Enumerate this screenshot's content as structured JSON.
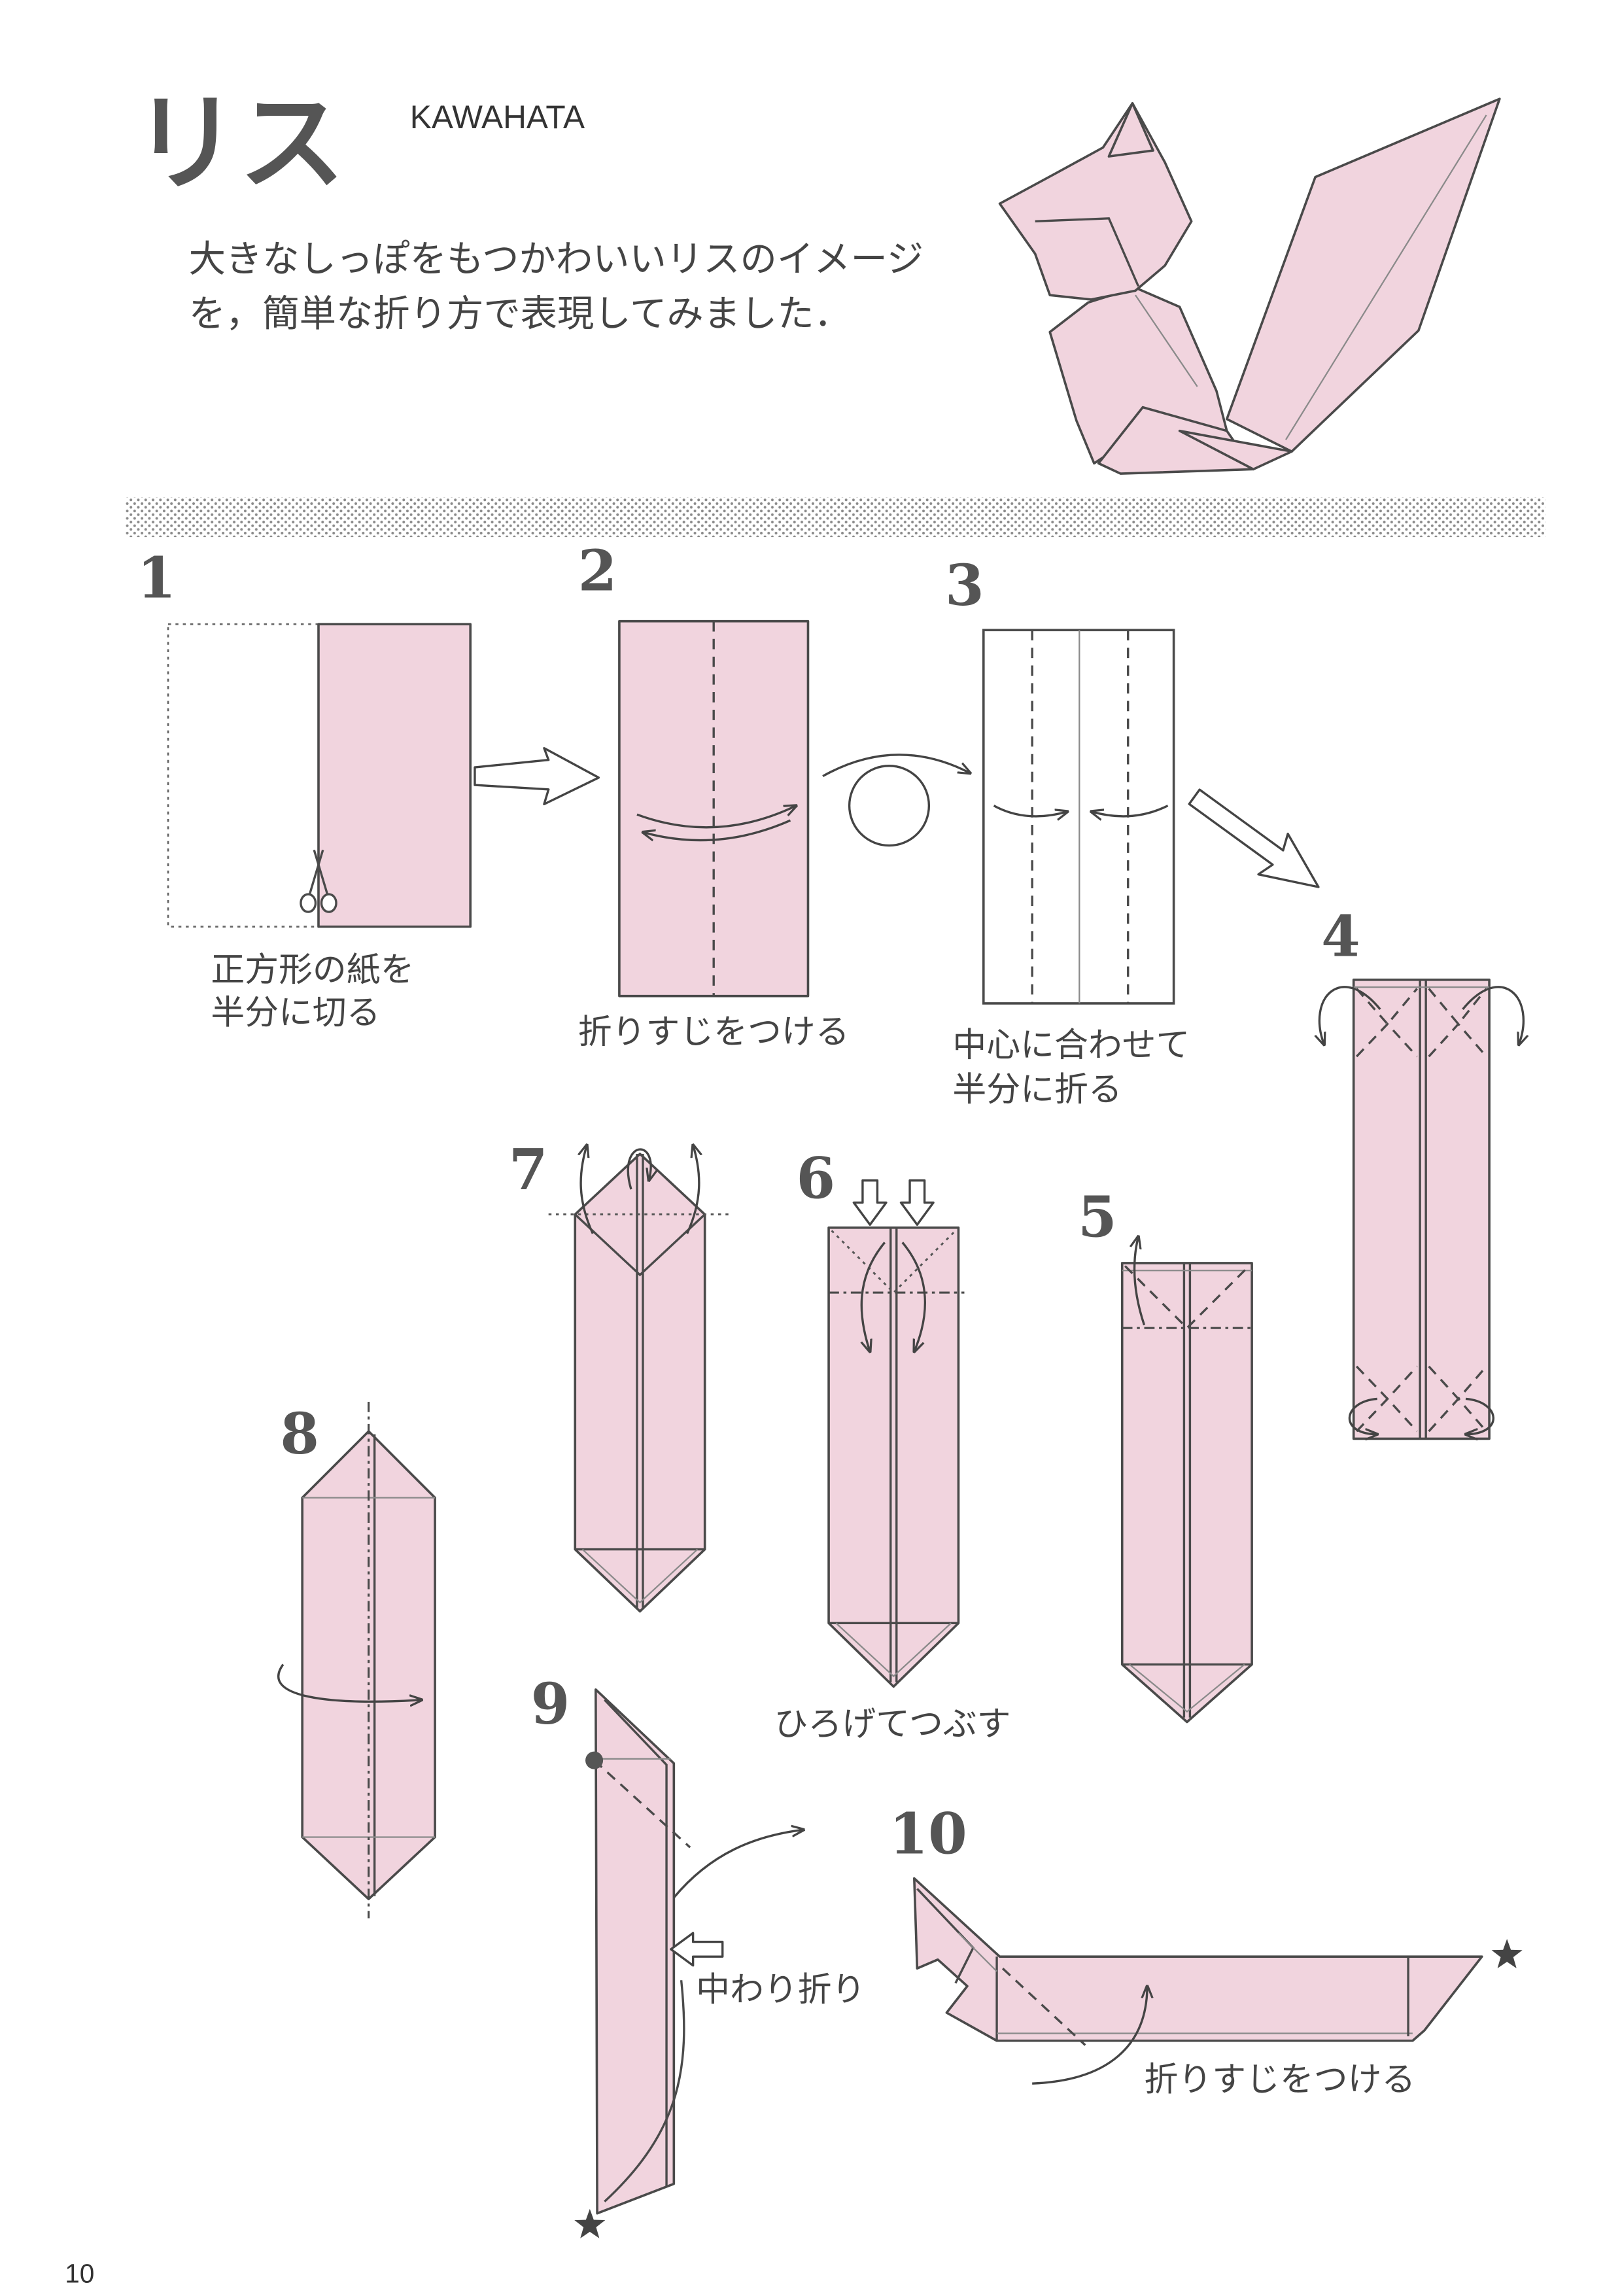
{
  "page": {
    "title": "リス",
    "author": "KAWAHATA",
    "description": [
      "大きなしっぽをもつかわいいリスのイメージ",
      "を，簡単な折り方で表現してみました．"
    ],
    "page_number": "10"
  },
  "steps": [
    {
      "number": "1",
      "caption": [
        "正方形の紙を",
        "半分に切る"
      ]
    },
    {
      "number": "2",
      "caption": [
        "折りすじをつける"
      ]
    },
    {
      "number": "3",
      "caption": [
        "中心に合わせて",
        "半分に折る"
      ]
    },
    {
      "number": "4"
    },
    {
      "number": "5"
    },
    {
      "number": "6",
      "caption": [
        "ひろげてつぶす"
      ]
    },
    {
      "number": "7"
    },
    {
      "number": "8"
    },
    {
      "number": "9",
      "caption": [
        "中わり折り"
      ]
    },
    {
      "number": "10",
      "caption": [
        "折りすじをつける"
      ]
    }
  ],
  "icons": {
    "cut": "scissors-icon",
    "turn_over": "turn-over-icon",
    "reference_mark": "star-icon",
    "pivot_point": "dot-marker-icon",
    "push": "push-arrow-icon"
  },
  "colors": {
    "paper": "#f1d4de",
    "line": "#4a4a4a",
    "title": "#555555",
    "text": "#444444"
  }
}
